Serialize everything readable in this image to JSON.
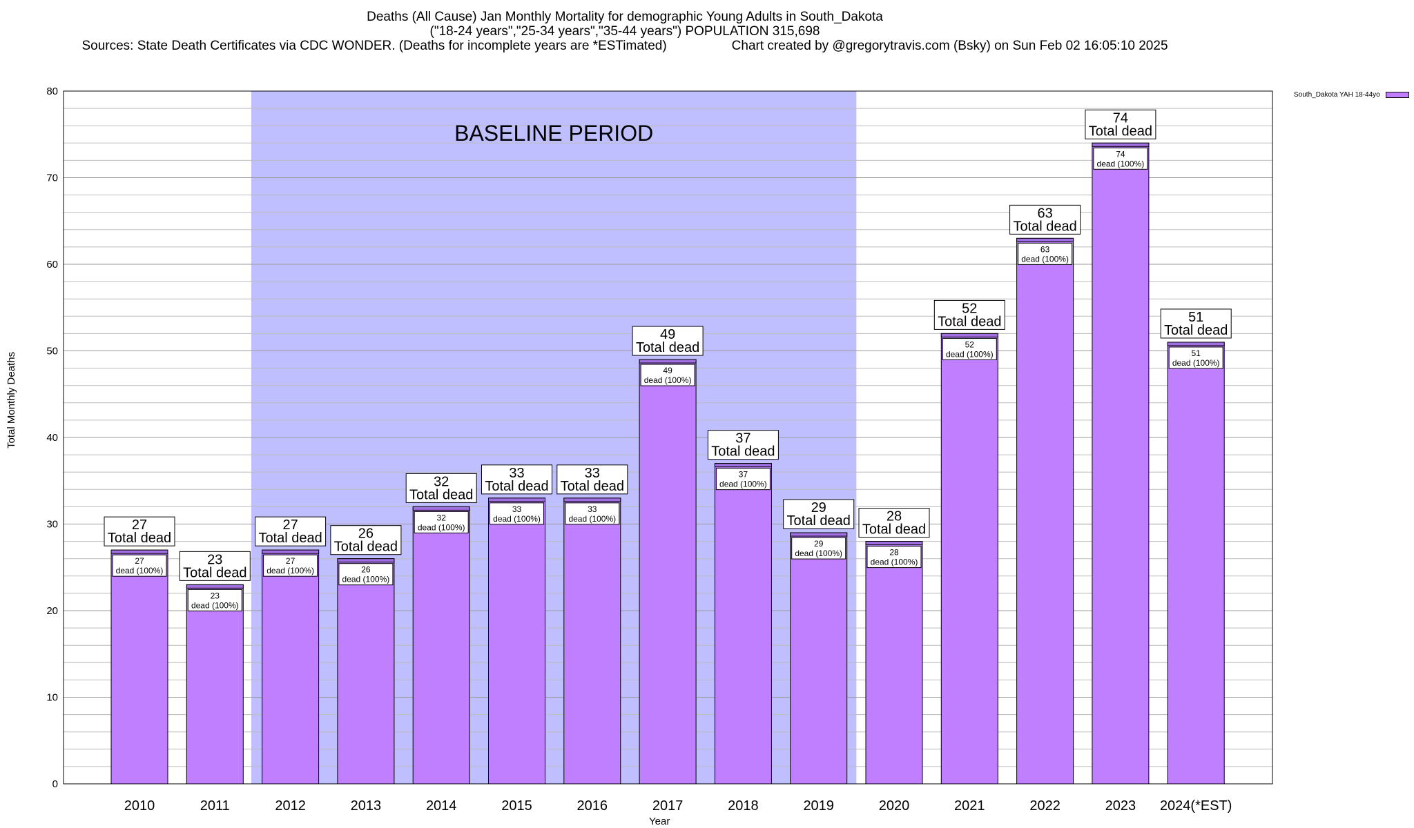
{
  "chart_data": {
    "type": "bar",
    "title": "Deaths (All Cause) Jan Monthly Mortality for demographic Young Adults in South_Dakota",
    "subtitle": "(\"18-24 years\",\"25-34 years\",\"35-44 years\") POPULATION 315,698",
    "sources": "Sources: State Death Certificates via CDC WONDER. (Deaths for incomplete years are *ESTimated)",
    "credit": "Chart created by @gregorytravis.com (Bsky) on Sun Feb 02 16:05:10 2025",
    "xlabel": "Year",
    "ylabel": "Total Monthly Deaths",
    "ylim": [
      0,
      80
    ],
    "yticks": [
      0,
      10,
      20,
      30,
      40,
      50,
      60,
      70,
      80
    ],
    "y_minor_step": 2,
    "grid": true,
    "legend": {
      "position": "top-right",
      "label": "South_Dakota YAH 18-44yo"
    },
    "categories": [
      "2010",
      "2011",
      "2012",
      "2013",
      "2014",
      "2015",
      "2016",
      "2017",
      "2018",
      "2019",
      "2020",
      "2021",
      "2022",
      "2023",
      "2024(*EST)"
    ],
    "series": [
      {
        "name": "South_Dakota YAH 18-44yo",
        "values": [
          27,
          23,
          27,
          26,
          32,
          33,
          33,
          49,
          37,
          29,
          28,
          52,
          63,
          74,
          51
        ]
      }
    ],
    "bar_color": "#bf7fff",
    "bar_top_strip_color": "#a070e0",
    "total_label_suffix": "Total dead",
    "inner_label_suffix": "dead (100%)",
    "baseline": {
      "label": "BASELINE PERIOD",
      "start": "2012",
      "end": "2019",
      "color": "#bfbfff"
    }
  }
}
